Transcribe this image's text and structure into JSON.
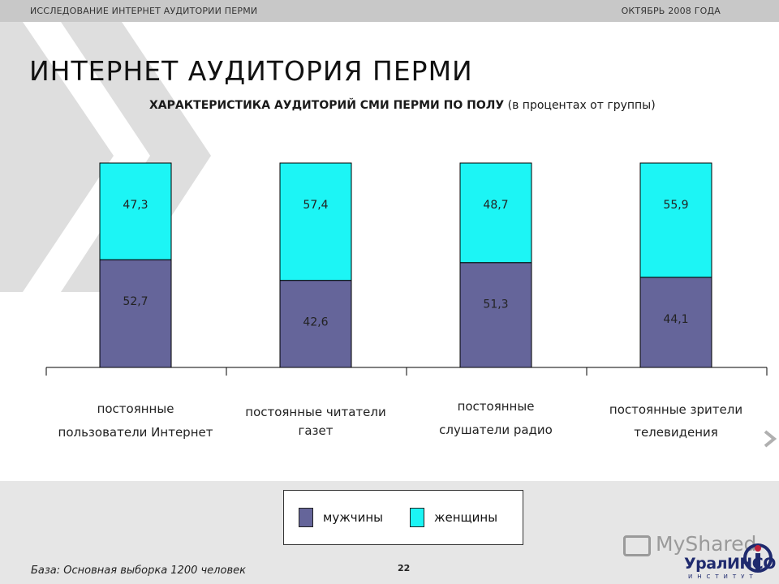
{
  "header": {
    "left_text": "ИССЛЕДОВАНИЕ ИНТЕРНЕТ АУДИТОРИИ ПЕРМИ",
    "right_text": "ОКТЯБРЬ 2008 ГОДА"
  },
  "page": {
    "title": "ИНТЕРНЕТ АУДИТОРИЯ ПЕРМИ",
    "base_note": "База: Основная выборка 1200 человек",
    "page_number": "22"
  },
  "chart_data": {
    "type": "bar",
    "stacked": true,
    "title": "ХАРАКТЕРИСТИКА АУДИТОРИЙ СМИ ПЕРМИ ПО ПОЛУ",
    "subtitle": "(в процентах от группы)",
    "categories": [
      [
        "постоянные",
        "пользователи Интернет"
      ],
      [
        "постоянные читатели",
        "газет"
      ],
      [
        "постоянные",
        "слушатели радио"
      ],
      [
        "постоянные зрители",
        "телевидения"
      ]
    ],
    "series": [
      {
        "name": "мужчины",
        "values": [
          52.7,
          42.6,
          51.3,
          44.1
        ],
        "labels": [
          "52,7",
          "42,6",
          "51,3",
          "44,1"
        ],
        "color": "#65659a"
      },
      {
        "name": "женщины",
        "values": [
          47.3,
          57.4,
          48.7,
          55.9
        ],
        "labels": [
          "47,3",
          "57,4",
          "48,7",
          "55,9"
        ],
        "color": "#1cf5f5"
      }
    ],
    "ylim": [
      0,
      100
    ],
    "grid": false,
    "legend_position": "bottom"
  },
  "branding": {
    "watermark": "MyShared",
    "logo": "УралИНСО",
    "logo_sub": "ИНСТИТУТ"
  }
}
